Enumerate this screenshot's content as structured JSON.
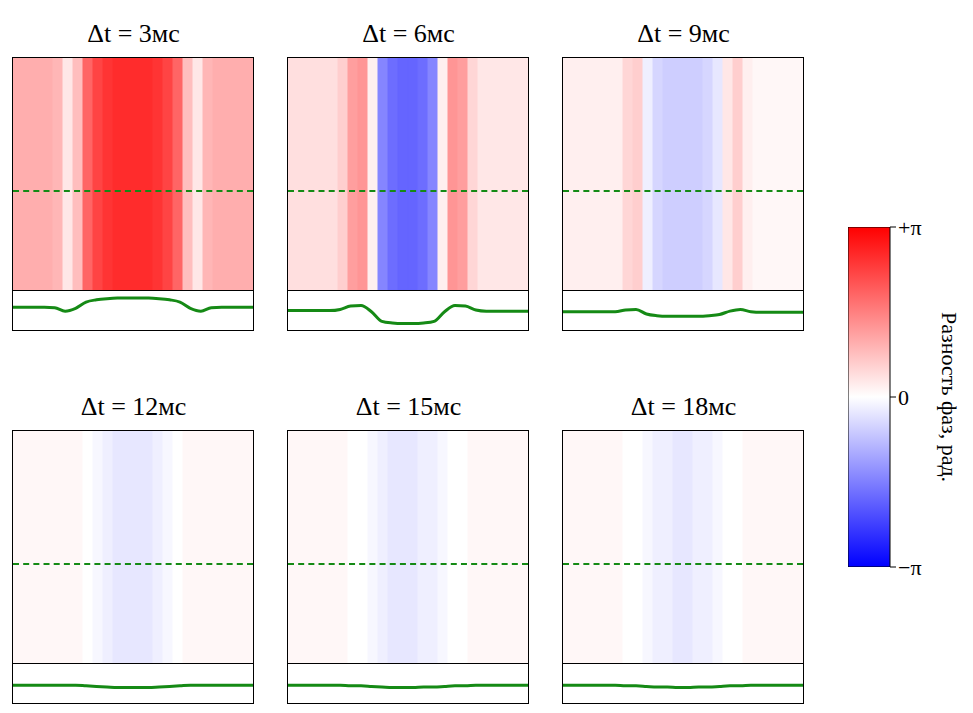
{
  "chart_data": {
    "type": "heatmap",
    "tick_labels": false,
    "color": "#158a15",
    "profile_ylim": [
      -2.5,
      3.5
    ],
    "panels": [
      {
        "title": "Δt = 3мс",
        "cells": [
          1.0,
          1.0,
          1.0,
          1.0,
          0.9,
          0.3,
          0.8,
          1.9,
          2.3,
          2.5,
          2.6,
          2.6,
          2.6,
          2.6,
          2.5,
          2.3,
          1.9,
          0.8,
          0.3,
          0.9,
          1.0,
          1.0,
          1.0,
          1.0
        ]
      },
      {
        "title": "Δt = 6мс",
        "cells": [
          0.4,
          0.4,
          0.4,
          0.4,
          0.4,
          0.6,
          1.2,
          1.3,
          0.2,
          -1.5,
          -1.8,
          -1.9,
          -1.9,
          -1.8,
          -1.5,
          0.2,
          1.3,
          1.2,
          0.5,
          0.3,
          0.3,
          0.3,
          0.3,
          0.3
        ]
      },
      {
        "title": "Δt = 9мс",
        "cells": [
          0.2,
          0.2,
          0.2,
          0.2,
          0.2,
          0.2,
          0.5,
          0.6,
          -0.2,
          -0.5,
          -0.6,
          -0.6,
          -0.6,
          -0.6,
          -0.5,
          -0.3,
          0.3,
          0.6,
          0.2,
          0.1,
          0.1,
          0.1,
          0.1,
          0.1
        ]
      },
      {
        "title": "Δt = 12мс",
        "cells": [
          0.1,
          0.1,
          0.1,
          0.1,
          0.1,
          0.1,
          0.1,
          0.0,
          -0.1,
          -0.2,
          -0.3,
          -0.3,
          -0.3,
          -0.3,
          -0.2,
          -0.1,
          0.0,
          0.1,
          0.1,
          0.1,
          0.1,
          0.1,
          0.1,
          0.1
        ]
      },
      {
        "title": "Δt = 15мс",
        "cells": [
          0.1,
          0.1,
          0.1,
          0.1,
          0.1,
          0.1,
          0.0,
          0.0,
          -0.1,
          -0.2,
          -0.3,
          -0.3,
          -0.3,
          -0.2,
          -0.2,
          -0.1,
          0.0,
          0.0,
          0.1,
          0.1,
          0.1,
          0.1,
          0.1,
          0.1
        ]
      },
      {
        "title": "Δt = 18мс",
        "cells": [
          0.1,
          0.1,
          0.1,
          0.1,
          0.1,
          0.1,
          0.0,
          0.0,
          -0.1,
          -0.2,
          -0.2,
          -0.3,
          -0.3,
          -0.2,
          -0.2,
          -0.1,
          0.0,
          0.0,
          0.1,
          0.1,
          0.1,
          0.1,
          0.1,
          0.1
        ]
      }
    ],
    "colorbar": {
      "range": [
        -3.14159,
        3.14159
      ],
      "ticks": [
        {
          "value": 3.14159,
          "label": "+π"
        },
        0,
        {
          "value": -3.14159,
          "label": "−π"
        }
      ],
      "label": "Разность фаз, рад."
    }
  }
}
